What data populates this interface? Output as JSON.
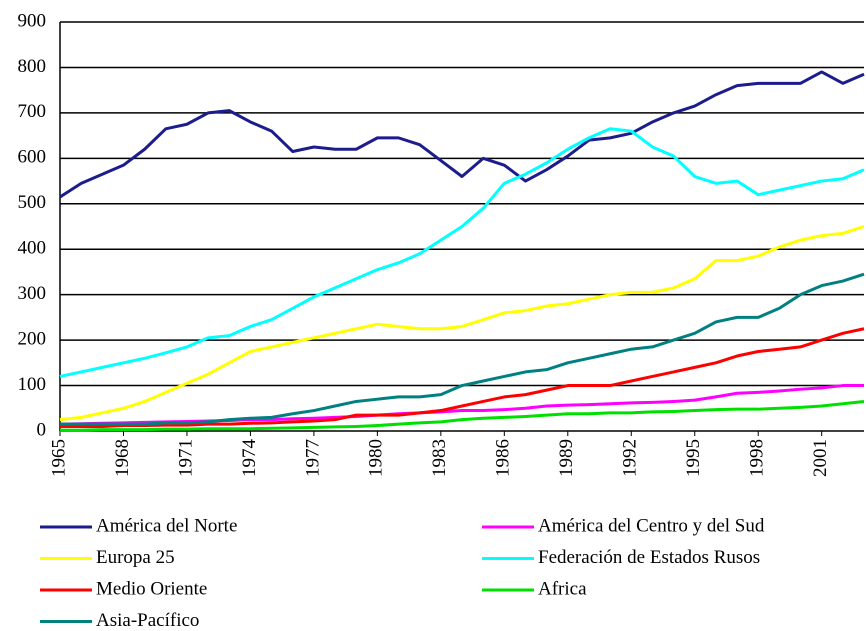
{
  "chart_data": {
    "type": "line",
    "x": [
      1965,
      1966,
      1967,
      1968,
      1969,
      1970,
      1971,
      1972,
      1973,
      1974,
      1975,
      1976,
      1977,
      1978,
      1979,
      1980,
      1981,
      1982,
      1983,
      1984,
      1985,
      1986,
      1987,
      1988,
      1989,
      1990,
      1991,
      1992,
      1993,
      1994,
      1995,
      1996,
      1997,
      1998,
      1999,
      2000,
      2001,
      2002,
      2003
    ],
    "xlim": [
      1965,
      2003
    ],
    "xticks": [
      1965,
      1968,
      1971,
      1974,
      1977,
      1980,
      1983,
      1986,
      1989,
      1992,
      1995,
      1998,
      2001
    ],
    "ylim": [
      0,
      900
    ],
    "yticks": [
      0,
      100,
      200,
      300,
      400,
      500,
      600,
      700,
      800,
      900
    ],
    "grid": true,
    "series": [
      {
        "name": "América del Norte",
        "color": "#1c1c8c",
        "values": [
          515,
          545,
          565,
          585,
          620,
          665,
          675,
          700,
          705,
          680,
          660,
          615,
          625,
          620,
          620,
          645,
          645,
          630,
          595,
          560,
          600,
          585,
          550,
          575,
          605,
          640,
          645,
          655,
          680,
          700,
          715,
          740,
          760,
          765,
          765,
          765,
          790,
          765,
          785
        ]
      },
      {
        "name": "América del Centro y del Sud",
        "color": "#ff00ff",
        "values": [
          15,
          16,
          17,
          18,
          19,
          20,
          21,
          22,
          23,
          25,
          25,
          27,
          28,
          30,
          32,
          35,
          38,
          40,
          42,
          45,
          45,
          47,
          50,
          55,
          57,
          58,
          60,
          62,
          63,
          65,
          68,
          75,
          83,
          85,
          88,
          92,
          95,
          100,
          100
        ]
      },
      {
        "name": "Europa 25",
        "color": "#ffff00",
        "values": [
          25,
          30,
          40,
          50,
          65,
          85,
          105,
          125,
          150,
          175,
          185,
          195,
          205,
          215,
          225,
          235,
          230,
          225,
          225,
          230,
          245,
          260,
          265,
          275,
          280,
          290,
          300,
          305,
          305,
          315,
          335,
          375,
          375,
          385,
          405,
          420,
          430,
          435,
          450
        ]
      },
      {
        "name": "Federación de Estados Rusos",
        "color": "#00ffff",
        "values": [
          120,
          130,
          140,
          150,
          160,
          172,
          185,
          205,
          210,
          230,
          245,
          270,
          295,
          315,
          335,
          355,
          370,
          390,
          420,
          450,
          490,
          545,
          565,
          590,
          620,
          645,
          665,
          660,
          625,
          605,
          560,
          545,
          550,
          520,
          530,
          540,
          550,
          555,
          575
        ]
      },
      {
        "name": "Medio Oriente",
        "color": "#ff0000",
        "values": [
          10,
          10,
          10,
          12,
          12,
          13,
          13,
          15,
          15,
          17,
          18,
          20,
          22,
          25,
          35,
          35,
          35,
          40,
          45,
          55,
          65,
          75,
          80,
          90,
          100,
          100,
          100,
          110,
          120,
          130,
          140,
          150,
          165,
          175,
          180,
          185,
          200,
          215,
          225
        ]
      },
      {
        "name": "Africa",
        "color": "#00e000",
        "values": [
          2,
          2,
          3,
          3,
          3,
          4,
          4,
          5,
          5,
          5,
          6,
          7,
          8,
          9,
          10,
          12,
          15,
          18,
          20,
          25,
          28,
          30,
          32,
          35,
          38,
          38,
          40,
          40,
          42,
          43,
          45,
          47,
          48,
          48,
          50,
          52,
          55,
          60,
          65
        ]
      },
      {
        "name": "Asia-Pacífico",
        "color": "#008080",
        "values": [
          15,
          15,
          15,
          15,
          15,
          18,
          18,
          20,
          25,
          28,
          30,
          38,
          45,
          55,
          65,
          70,
          75,
          75,
          80,
          100,
          110,
          120,
          130,
          135,
          150,
          160,
          170,
          180,
          185,
          200,
          215,
          240,
          250,
          250,
          270,
          300,
          320,
          330,
          345
        ]
      }
    ]
  }
}
